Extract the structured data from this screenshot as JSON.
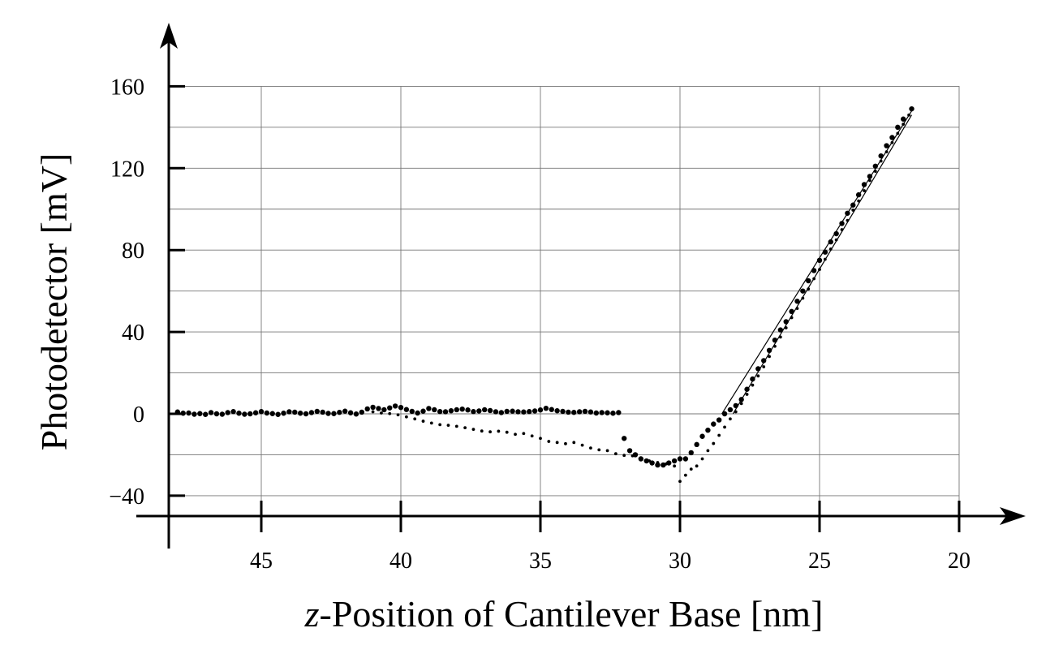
{
  "chart_data": {
    "type": "scatter",
    "title": "",
    "xlabel_var": "z",
    "xlabel_rest": "-Position of Cantilever Base [nm]",
    "ylabel": "Photodetector [mV]",
    "xlim": [
      48.3,
      20
    ],
    "ylim": [
      -50,
      180
    ],
    "x_reversed": true,
    "grid": true,
    "x_ticks": [
      45,
      40,
      35,
      30,
      25,
      20
    ],
    "x_tick_labels": [
      "45",
      "40",
      "35",
      "30",
      "25",
      "20"
    ],
    "y_ticks": [
      -40,
      0,
      40,
      80,
      120,
      160
    ],
    "y_tick_labels": [
      "−40",
      "0",
      "40",
      "80",
      "120",
      "160"
    ],
    "series": [
      {
        "marker": "large-dot",
        "points": [
          [
            48.0,
            0.9
          ],
          [
            47.8,
            0.3
          ],
          [
            47.6,
            0.4
          ],
          [
            47.4,
            -0.2
          ],
          [
            47.2,
            0.1
          ],
          [
            47.0,
            -0.3
          ],
          [
            46.8,
            0.6
          ],
          [
            46.6,
            0.0
          ],
          [
            46.4,
            -0.2
          ],
          [
            46.2,
            0.6
          ],
          [
            46.0,
            1.1
          ],
          [
            45.8,
            0.3
          ],
          [
            45.6,
            -0.2
          ],
          [
            45.4,
            0.0
          ],
          [
            45.2,
            0.5
          ],
          [
            45.0,
            1.1
          ],
          [
            44.8,
            0.4
          ],
          [
            44.6,
            0.1
          ],
          [
            44.4,
            -0.3
          ],
          [
            44.2,
            0.3
          ],
          [
            44.0,
            1.0
          ],
          [
            43.8,
            0.8
          ],
          [
            43.6,
            0.3
          ],
          [
            43.4,
            0.0
          ],
          [
            43.2,
            0.6
          ],
          [
            43.0,
            1.2
          ],
          [
            42.8,
            0.8
          ],
          [
            42.6,
            0.2
          ],
          [
            42.4,
            0.1
          ],
          [
            42.2,
            0.7
          ],
          [
            42.0,
            1.3
          ],
          [
            41.8,
            0.5
          ],
          [
            41.6,
            -0.1
          ],
          [
            41.4,
            0.8
          ],
          [
            41.2,
            2.4
          ],
          [
            41.0,
            3.2
          ],
          [
            40.8,
            2.6
          ],
          [
            40.6,
            2.0
          ],
          [
            40.4,
            2.9
          ],
          [
            40.2,
            3.8
          ],
          [
            40.0,
            3.1
          ],
          [
            39.8,
            2.1
          ],
          [
            39.6,
            1.2
          ],
          [
            39.4,
            0.4
          ],
          [
            39.2,
            1.3
          ],
          [
            39.0,
            2.6
          ],
          [
            38.8,
            2.0
          ],
          [
            38.6,
            1.1
          ],
          [
            38.4,
            1.0
          ],
          [
            38.2,
            1.5
          ],
          [
            38.0,
            2.0
          ],
          [
            37.8,
            2.3
          ],
          [
            37.6,
            1.9
          ],
          [
            37.4,
            1.1
          ],
          [
            37.2,
            1.4
          ],
          [
            37.0,
            2.0
          ],
          [
            36.8,
            1.6
          ],
          [
            36.6,
            1.0
          ],
          [
            36.4,
            0.6
          ],
          [
            36.2,
            1.2
          ],
          [
            36.0,
            1.3
          ],
          [
            35.8,
            1.0
          ],
          [
            35.6,
            0.9
          ],
          [
            35.4,
            1.1
          ],
          [
            35.2,
            1.4
          ],
          [
            35.0,
            1.9
          ],
          [
            34.8,
            2.7
          ],
          [
            34.6,
            2.1
          ],
          [
            34.4,
            1.5
          ],
          [
            34.2,
            1.2
          ],
          [
            34.0,
            0.8
          ],
          [
            33.8,
            0.7
          ],
          [
            33.6,
            1.0
          ],
          [
            33.4,
            1.2
          ],
          [
            33.2,
            0.9
          ],
          [
            33.0,
            0.4
          ],
          [
            32.8,
            0.6
          ],
          [
            32.6,
            0.5
          ],
          [
            32.4,
            0.3
          ],
          [
            32.2,
            0.6
          ],
          [
            32.0,
            -12.0
          ],
          [
            31.8,
            -18.0
          ],
          [
            31.6,
            -20.0
          ],
          [
            31.4,
            -22.0
          ],
          [
            31.2,
            -23.0
          ],
          [
            31.0,
            -24.0
          ],
          [
            30.8,
            -25.0
          ],
          [
            30.6,
            -25.0
          ],
          [
            30.4,
            -24.0
          ],
          [
            30.2,
            -23.0
          ],
          [
            30.0,
            -22.0
          ],
          [
            29.8,
            -22.0
          ],
          [
            29.6,
            -19.0
          ],
          [
            29.4,
            -15.0
          ],
          [
            29.2,
            -11.0
          ],
          [
            29.0,
            -8.0
          ],
          [
            28.8,
            -5.0
          ],
          [
            28.6,
            -3.0
          ],
          [
            28.4,
            0.0
          ],
          [
            28.2,
            2.0
          ],
          [
            28.0,
            4.0
          ],
          [
            27.8,
            7.0
          ],
          [
            27.6,
            12.0
          ],
          [
            27.4,
            17.0
          ],
          [
            27.2,
            22.0
          ],
          [
            27.0,
            26.0
          ],
          [
            26.8,
            31.0
          ],
          [
            26.6,
            36.0
          ],
          [
            26.4,
            41.0
          ],
          [
            26.2,
            45.0
          ],
          [
            26.0,
            50.0
          ],
          [
            25.8,
            55.0
          ],
          [
            25.6,
            60.0
          ],
          [
            25.4,
            65.0
          ],
          [
            25.2,
            70.0
          ],
          [
            25.0,
            75.0
          ],
          [
            24.8,
            79.0
          ],
          [
            24.6,
            84.0
          ],
          [
            24.4,
            88.0
          ],
          [
            24.2,
            93.0
          ],
          [
            24.0,
            98.0
          ],
          [
            23.8,
            102.0
          ],
          [
            23.6,
            107.0
          ],
          [
            23.4,
            112.0
          ],
          [
            23.2,
            116.0
          ],
          [
            23.0,
            121.0
          ],
          [
            22.8,
            126.0
          ],
          [
            22.6,
            131.0
          ],
          [
            22.4,
            135.0
          ],
          [
            22.2,
            140.0
          ],
          [
            22.0,
            144.0
          ],
          [
            21.7,
            149.0
          ]
        ]
      },
      {
        "marker": "small-dot",
        "points": [
          [
            41.0,
            1.0
          ],
          [
            40.7,
            0.4
          ],
          [
            40.4,
            0.1
          ],
          [
            40.1,
            -0.5
          ],
          [
            39.8,
            -1.5
          ],
          [
            39.5,
            -2.5
          ],
          [
            39.2,
            -3.6
          ],
          [
            38.9,
            -4.5
          ],
          [
            38.6,
            -5.3
          ],
          [
            38.3,
            -5.6
          ],
          [
            38.0,
            -6.1
          ],
          [
            37.7,
            -6.8
          ],
          [
            37.4,
            -7.6
          ],
          [
            37.1,
            -8.4
          ],
          [
            36.8,
            -8.8
          ],
          [
            36.5,
            -8.5
          ],
          [
            36.2,
            -9.0
          ],
          [
            35.9,
            -10.0
          ],
          [
            35.6,
            -9.6
          ],
          [
            35.3,
            -10.8
          ],
          [
            35.0,
            -12.0
          ],
          [
            34.7,
            -13.5
          ],
          [
            34.4,
            -14.0
          ],
          [
            34.1,
            -14.6
          ],
          [
            33.8,
            -14.0
          ],
          [
            33.5,
            -15.3
          ],
          [
            33.2,
            -16.7
          ],
          [
            32.9,
            -17.6
          ],
          [
            32.6,
            -18.0
          ],
          [
            32.3,
            -19.5
          ],
          [
            32.0,
            -20.3
          ],
          [
            31.7,
            -20.5
          ],
          [
            31.4,
            -21.5
          ],
          [
            31.1,
            -23.0
          ],
          [
            30.8,
            -23.8
          ],
          [
            30.5,
            -24.5
          ],
          [
            30.2,
            -25.5
          ],
          [
            30.0,
            -33.0
          ],
          [
            29.8,
            -30.0
          ],
          [
            29.6,
            -27.0
          ],
          [
            29.4,
            -25.5
          ],
          [
            29.2,
            -22.0
          ],
          [
            29.0,
            -18.0
          ],
          [
            28.8,
            -14.5
          ],
          [
            28.6,
            -10.5
          ],
          [
            28.4,
            -6.5
          ],
          [
            28.2,
            -2.5
          ],
          [
            28.0,
            1.0
          ],
          [
            27.8,
            5.0
          ],
          [
            27.6,
            9.5
          ],
          [
            27.4,
            14.0
          ],
          [
            27.2,
            18.5
          ],
          [
            27.0,
            23.0
          ],
          [
            26.8,
            28.0
          ],
          [
            26.6,
            33.0
          ],
          [
            26.4,
            37.5
          ],
          [
            26.2,
            42.0
          ],
          [
            26.0,
            47.0
          ],
          [
            25.8,
            51.5
          ],
          [
            25.6,
            56.5
          ],
          [
            25.4,
            61.0
          ],
          [
            25.2,
            66.0
          ],
          [
            25.0,
            70.5
          ],
          [
            24.8,
            75.5
          ],
          [
            24.6,
            80.5
          ],
          [
            24.4,
            85.0
          ],
          [
            24.2,
            90.0
          ],
          [
            24.0,
            94.5
          ],
          [
            23.8,
            99.5
          ],
          [
            23.6,
            104.0
          ],
          [
            23.4,
            109.0
          ],
          [
            23.2,
            114.0
          ],
          [
            23.0,
            118.5
          ],
          [
            22.8,
            123.5
          ],
          [
            22.6,
            128.0
          ],
          [
            22.4,
            132.5
          ],
          [
            22.2,
            137.0
          ],
          [
            22.0,
            141.5
          ],
          [
            21.8,
            146.0
          ]
        ]
      }
    ],
    "fit_lines": [
      [
        [
          28.5,
          0.0
        ],
        [
          21.7,
          148.0
        ]
      ],
      [
        [
          28.1,
          0.0
        ],
        [
          21.7,
          146.0
        ]
      ]
    ]
  }
}
